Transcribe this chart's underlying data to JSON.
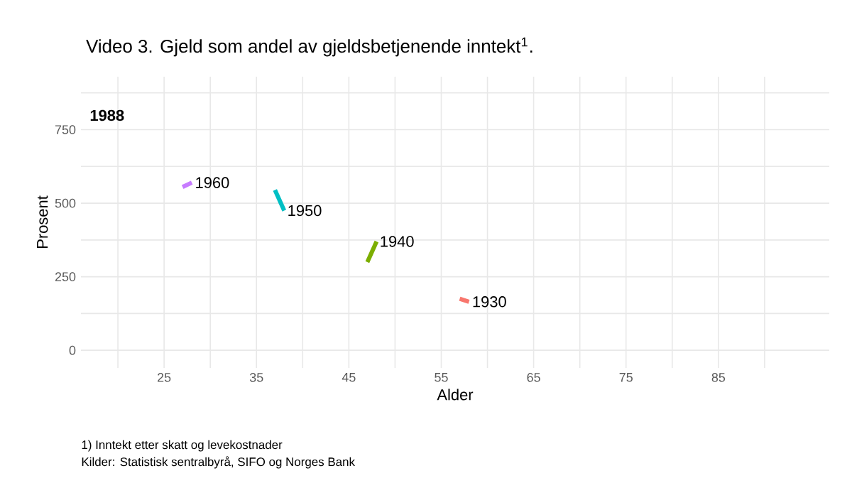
{
  "chart_data": {
    "type": "line",
    "title": "Video 3. Gjeld som andel av gjeldsbetjenende inntekt$^{1}$.",
    "xlabel": "Alder",
    "ylabel": "Prosent",
    "xlim": [
      16,
      97
    ],
    "ylim": [
      -60,
      930
    ],
    "xticks": [
      {
        "value": 20,
        "label": null
      },
      25,
      {
        "value": 30,
        "label": null
      },
      35,
      {
        "value": 40,
        "label": null
      },
      45,
      {
        "value": 50,
        "label": null
      },
      55,
      {
        "value": 60,
        "label": null
      },
      65,
      {
        "value": 70,
        "label": null
      },
      75,
      {
        "value": 80,
        "label": null
      },
      85,
      {
        "value": 90,
        "label": null
      }
    ],
    "yticks": [
      0,
      {
        "value": 125,
        "label": null
      },
      250,
      {
        "value": 375,
        "label": null
      },
      500,
      {
        "value": 625,
        "label": null
      },
      750,
      {
        "value": 875,
        "label": null
      }
    ],
    "grid": true,
    "legend": false,
    "line_style": "solid",
    "series": [
      {
        "name": "1930",
        "color": "#f8766d",
        "x": [
          57,
          58
        ],
        "values": [
          175,
          165
        ]
      },
      {
        "name": "1940",
        "color": "#7cae00",
        "x": [
          47,
          48
        ],
        "values": [
          300,
          370
        ]
      },
      {
        "name": "1950",
        "color": "#00bfc4",
        "x": [
          37,
          38
        ],
        "values": [
          545,
          475
        ]
      },
      {
        "name": "1960",
        "color": "#c77cff",
        "x": [
          27,
          28
        ],
        "values": [
          555,
          570
        ]
      }
    ],
    "annotations": [
      "1988",
      "1) Inntekt etter skatt og levekostnader",
      "Kilder: Statistisk sentralbyrå, SIFO og Norges Bank"
    ]
  }
}
